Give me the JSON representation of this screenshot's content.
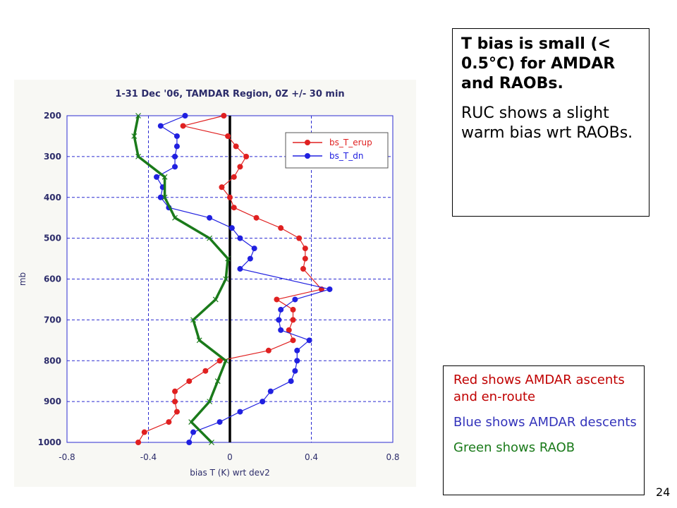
{
  "chart_data": {
    "type": "line",
    "title": "1-31 Dec '06, TAMDAR Region, 0Z +/- 30 min",
    "xlabel": "bias T (K) wrt dev2",
    "ylabel": "mb",
    "xlim": [
      -0.8,
      0.8
    ],
    "ylim": [
      1000,
      200
    ],
    "x_ticks": [
      "-0.8",
      "-0.4",
      "0",
      "0.4",
      "0.8"
    ],
    "y_ticks": [
      "200",
      "300",
      "400",
      "500",
      "600",
      "700",
      "800",
      "900",
      "1000"
    ],
    "x_tick_values": [
      -0.8,
      -0.4,
      0,
      0.4,
      0.8
    ],
    "y_tick_values": [
      200,
      300,
      400,
      500,
      600,
      700,
      800,
      900,
      1000
    ],
    "grid": true,
    "legend_position": "top-right",
    "zero_line": 0,
    "series": [
      {
        "name": "bs_T_erup",
        "color": "#e02020",
        "marker": "circle",
        "points": [
          [
            -0.03,
            200
          ],
          [
            -0.23,
            225
          ],
          [
            -0.01,
            250
          ],
          [
            0.03,
            275
          ],
          [
            0.08,
            300
          ],
          [
            0.05,
            325
          ],
          [
            0.02,
            350
          ],
          [
            -0.04,
            375
          ],
          [
            0.0,
            400
          ],
          [
            0.02,
            425
          ],
          [
            0.13,
            450
          ],
          [
            0.25,
            475
          ],
          [
            0.34,
            500
          ],
          [
            0.37,
            525
          ],
          [
            0.37,
            550
          ],
          [
            0.36,
            575
          ],
          [
            0.45,
            625
          ],
          [
            0.23,
            650
          ],
          [
            0.31,
            675
          ],
          [
            0.31,
            700
          ],
          [
            0.29,
            725
          ],
          [
            0.31,
            750
          ],
          [
            0.19,
            775
          ],
          [
            -0.05,
            800
          ],
          [
            -0.12,
            825
          ],
          [
            -0.2,
            850
          ],
          [
            -0.27,
            875
          ],
          [
            -0.27,
            900
          ],
          [
            -0.26,
            925
          ],
          [
            -0.3,
            950
          ],
          [
            -0.42,
            975
          ],
          [
            -0.45,
            1000
          ]
        ]
      },
      {
        "name": "bs_T_dn",
        "color": "#2020e0",
        "marker": "circle",
        "points": [
          [
            -0.22,
            200
          ],
          [
            -0.34,
            225
          ],
          [
            -0.26,
            250
          ],
          [
            -0.26,
            275
          ],
          [
            -0.27,
            300
          ],
          [
            -0.27,
            325
          ],
          [
            -0.36,
            350
          ],
          [
            -0.33,
            375
          ],
          [
            -0.34,
            400
          ],
          [
            -0.3,
            425
          ],
          [
            -0.1,
            450
          ],
          [
            0.01,
            475
          ],
          [
            0.05,
            500
          ],
          [
            0.12,
            525
          ],
          [
            0.1,
            550
          ],
          [
            0.05,
            575
          ],
          [
            0.49,
            625
          ],
          [
            0.32,
            650
          ],
          [
            0.25,
            675
          ],
          [
            0.24,
            700
          ],
          [
            0.25,
            725
          ],
          [
            0.39,
            750
          ],
          [
            0.33,
            775
          ],
          [
            0.33,
            800
          ],
          [
            0.32,
            825
          ],
          [
            0.3,
            850
          ],
          [
            0.2,
            875
          ],
          [
            0.16,
            900
          ],
          [
            0.05,
            925
          ],
          [
            -0.05,
            950
          ],
          [
            -0.18,
            975
          ],
          [
            -0.2,
            1000
          ]
        ]
      },
      {
        "name": "RAOB",
        "color": "#1a7a1a",
        "marker": "x",
        "points": [
          [
            -0.45,
            200
          ],
          [
            -0.47,
            250
          ],
          [
            -0.45,
            300
          ],
          [
            -0.32,
            350
          ],
          [
            -0.32,
            400
          ],
          [
            -0.27,
            450
          ],
          [
            -0.1,
            500
          ],
          [
            -0.01,
            550
          ],
          [
            -0.02,
            600
          ],
          [
            -0.07,
            650
          ],
          [
            -0.18,
            700
          ],
          [
            -0.15,
            750
          ],
          [
            -0.02,
            800
          ],
          [
            -0.06,
            850
          ],
          [
            -0.1,
            900
          ],
          [
            -0.19,
            950
          ],
          [
            -0.09,
            1000
          ]
        ]
      }
    ]
  },
  "notes": {
    "bold": "T bias is small (< 0.5°C) for AMDAR and RAOBs.",
    "plain": "RUC shows a slight warm bias wrt RAOBs."
  },
  "legend_box": {
    "red": "Red shows AMDAR ascents and en-route",
    "blue": "Blue shows AMDAR descents",
    "green": "Green shows RAOB"
  },
  "page_number": "24"
}
